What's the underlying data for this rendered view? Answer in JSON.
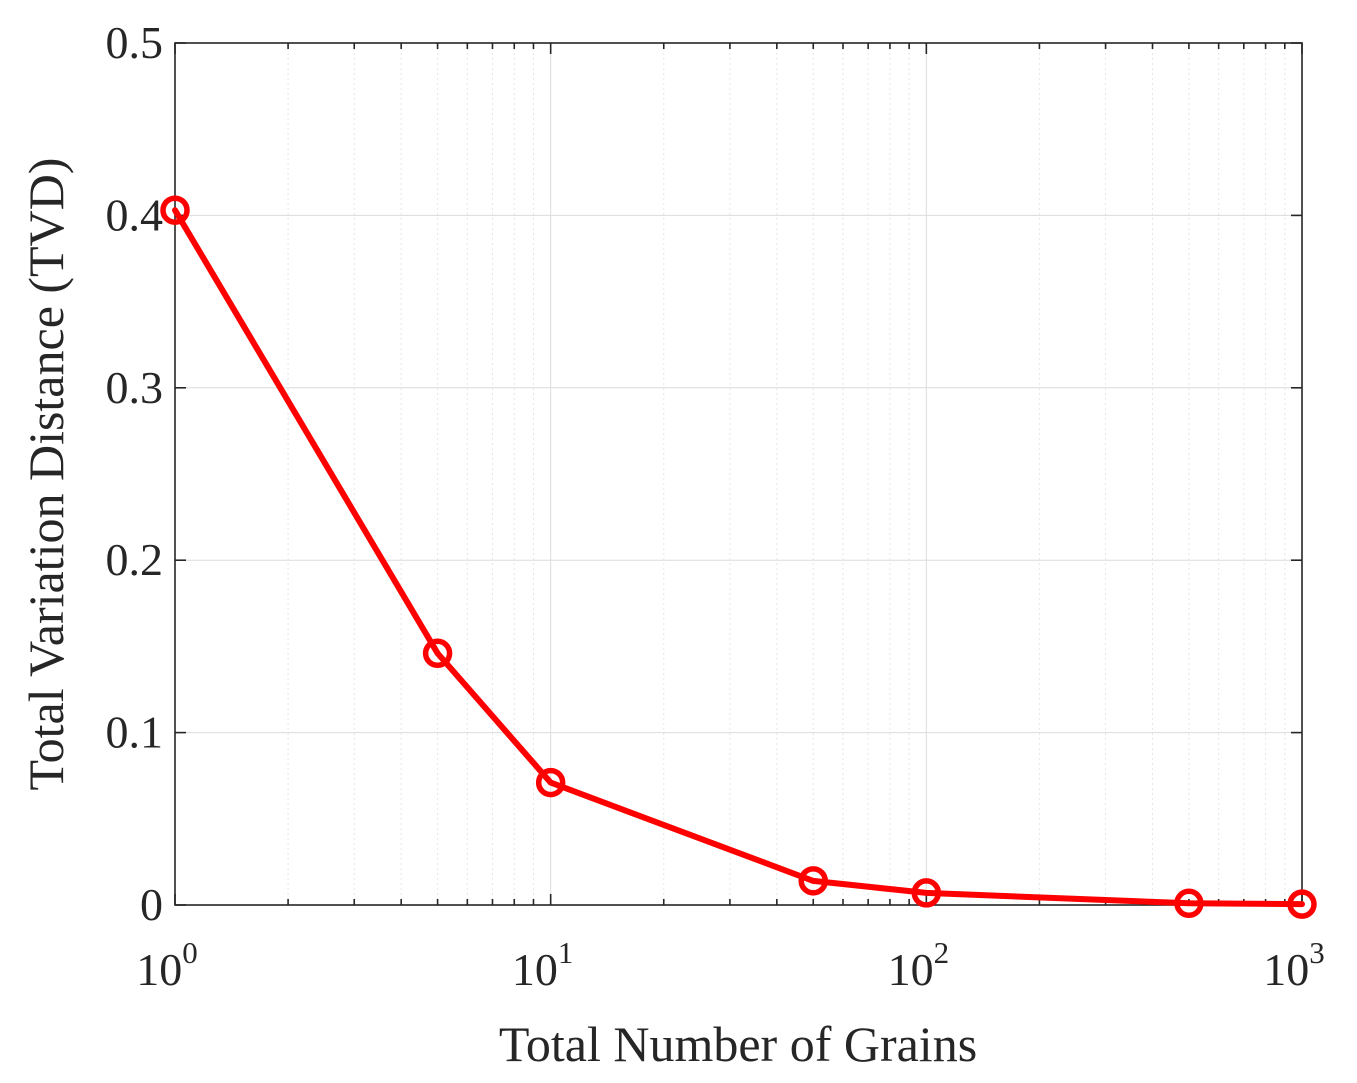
{
  "chart_data": {
    "type": "line",
    "x_scale": "log",
    "y_scale": "linear",
    "xlabel": "Total Number of Grains",
    "ylabel": "Total Variation Distance (TVD)",
    "xlim": [
      1,
      1000
    ],
    "ylim": [
      0,
      0.5
    ],
    "grid": true,
    "minor_grid_x": true,
    "x_ticks": [
      {
        "value": 1,
        "base": "10",
        "exp": "0"
      },
      {
        "value": 10,
        "base": "10",
        "exp": "1"
      },
      {
        "value": 100,
        "base": "10",
        "exp": "2"
      },
      {
        "value": 1000,
        "base": "10",
        "exp": "3"
      }
    ],
    "y_ticks": [
      {
        "value": 0,
        "label": "0"
      },
      {
        "value": 0.1,
        "label": "0.1"
      },
      {
        "value": 0.2,
        "label": "0.2"
      },
      {
        "value": 0.3,
        "label": "0.3"
      },
      {
        "value": 0.4,
        "label": "0.4"
      },
      {
        "value": 0.5,
        "label": "0.5"
      }
    ],
    "series": [
      {
        "color": "#ff0000",
        "marker": "circle",
        "x": [
          1,
          5,
          10,
          50,
          100,
          500,
          1000
        ],
        "y": [
          0.403,
          0.146,
          0.071,
          0.014,
          0.007,
          0.001,
          0.0005
        ]
      }
    ]
  }
}
